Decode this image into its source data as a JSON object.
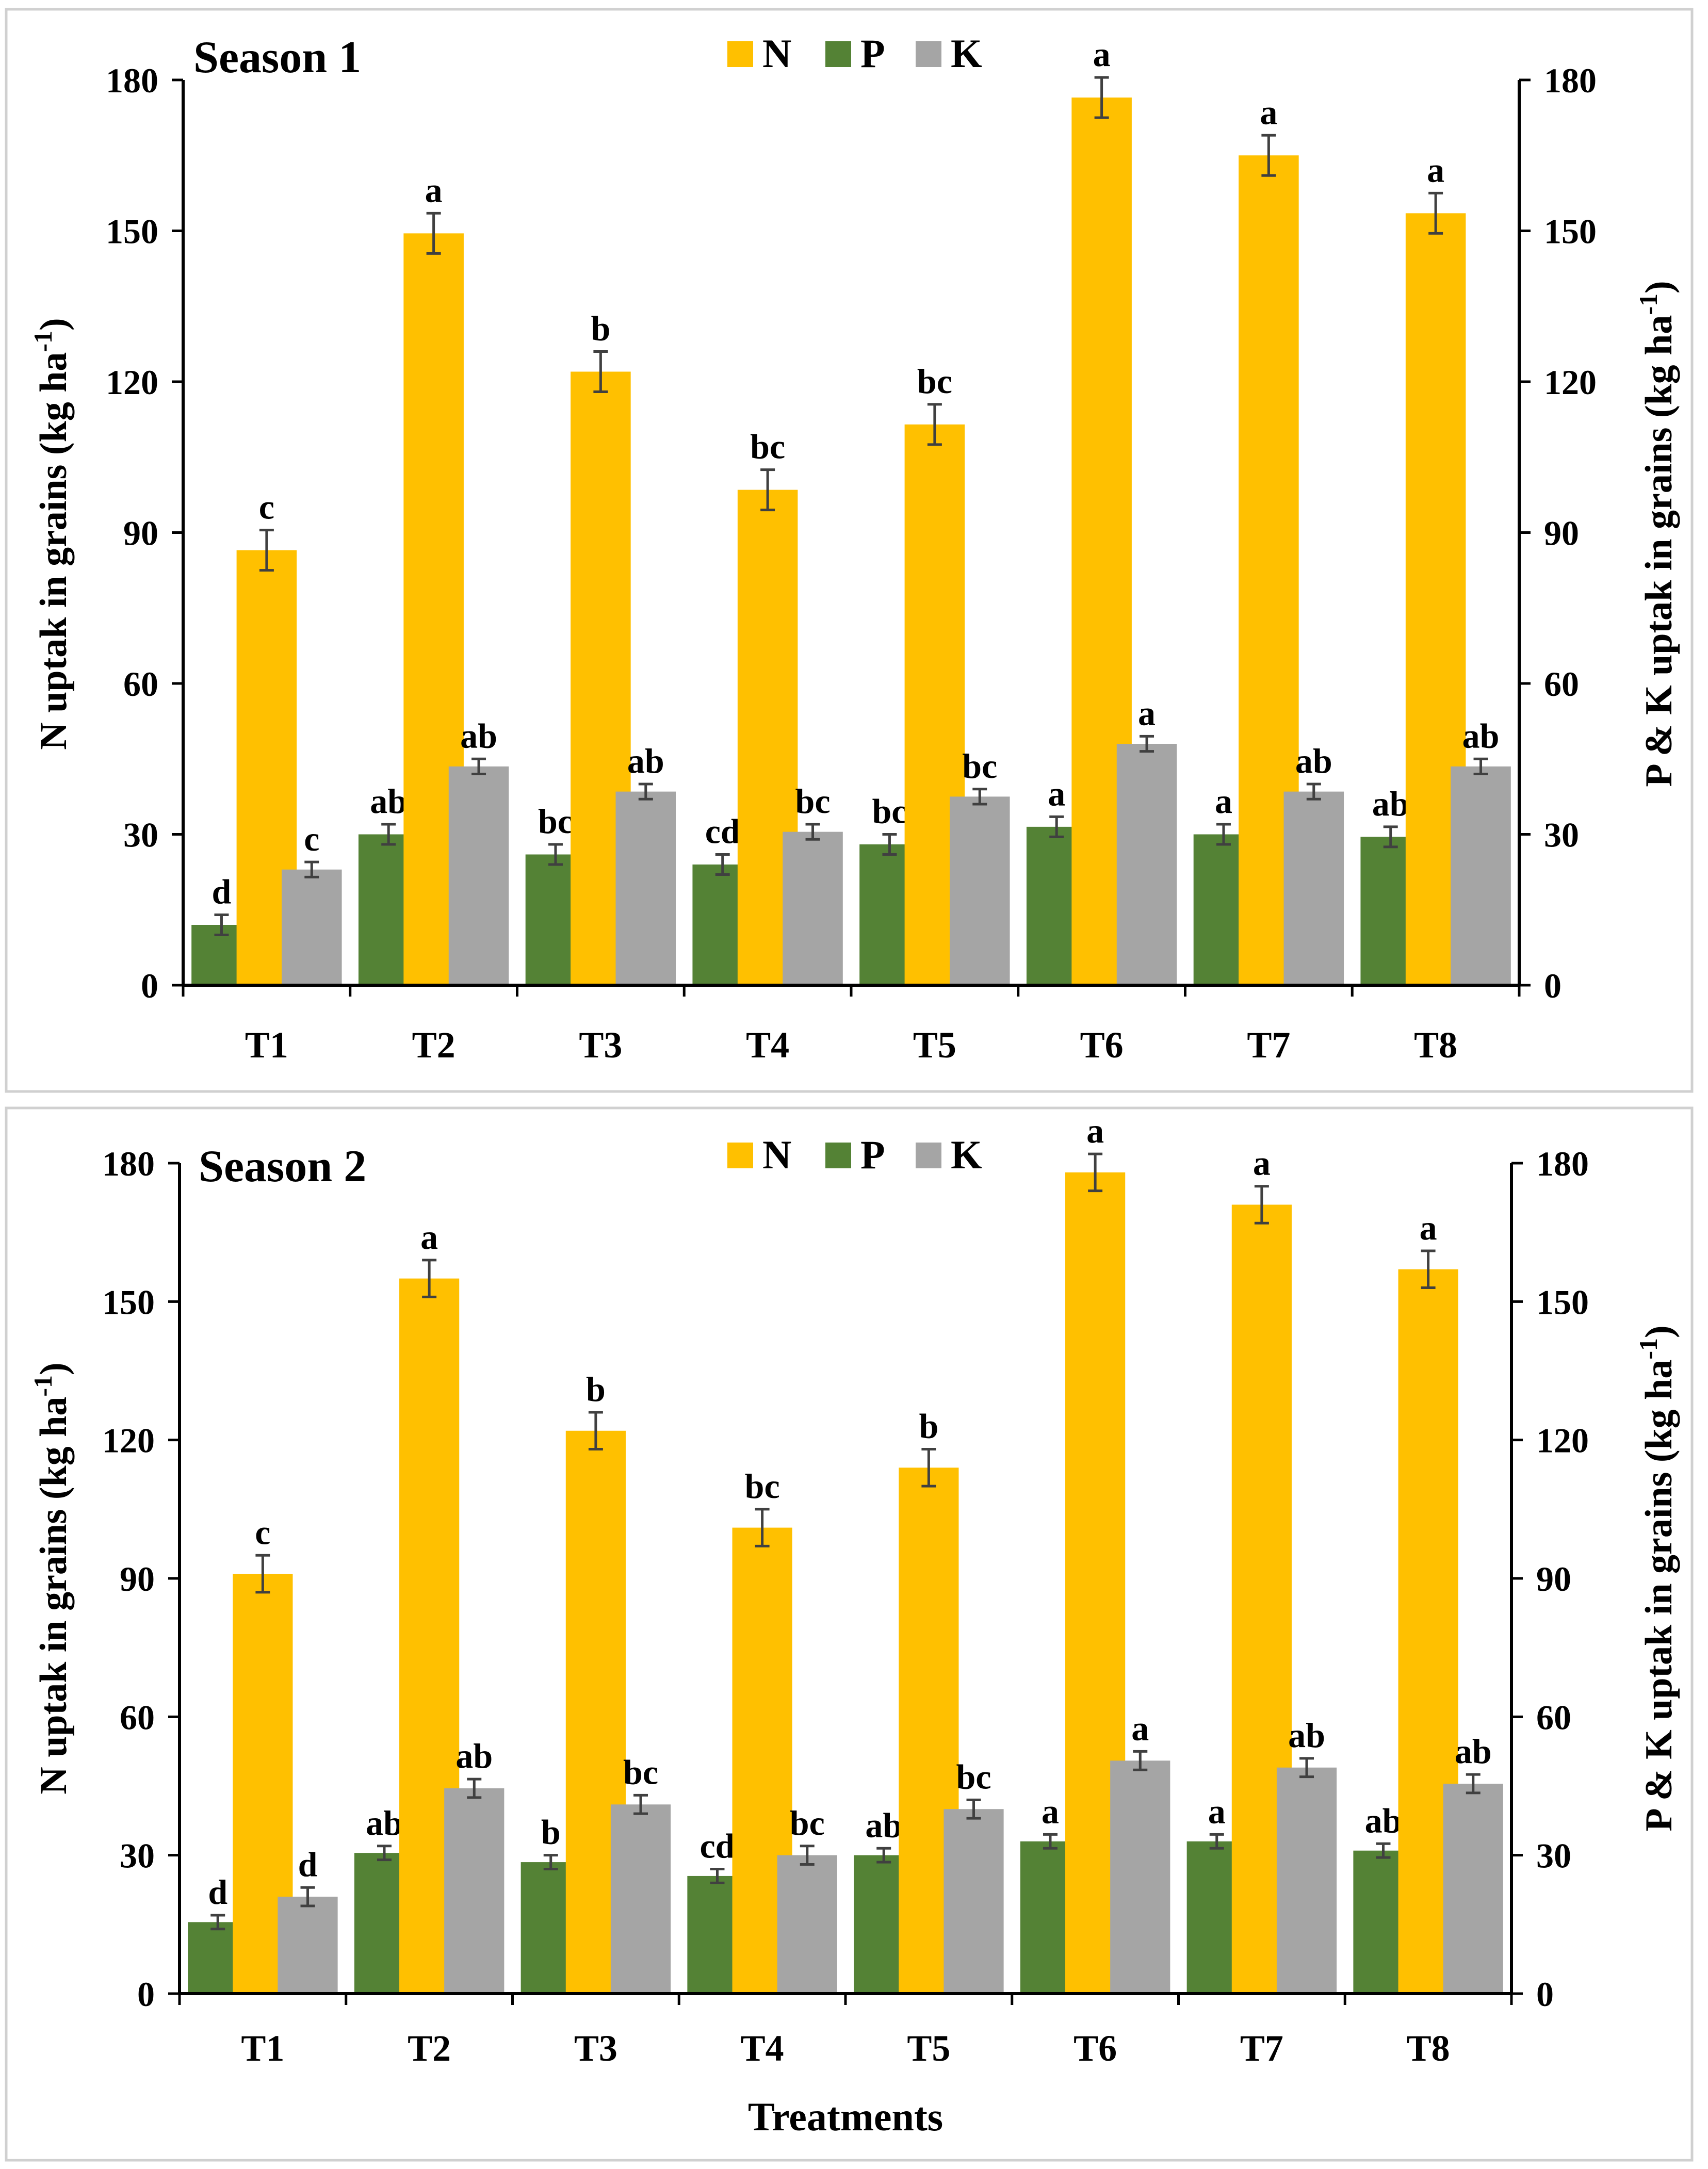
{
  "figure": {
    "xaxis_common_label": "Treatments"
  },
  "colors": {
    "N": "#FFC000",
    "P": "#548235",
    "K": "#A5A5A5",
    "error_bar": "#404040",
    "axis": "#000000"
  },
  "chart_data": [
    {
      "type": "bar",
      "title": "Season 1",
      "categories": [
        "T1",
        "T2",
        "T3",
        "T4",
        "T5",
        "T6",
        "T7",
        "T8"
      ],
      "ylabel_left": "N uptak in grains (kg ha⁻¹)",
      "ylabel_left_main": "N uptak in grains (kg ha",
      "ylabel_right": "P & K uptak in grains  (kg ha⁻¹)",
      "ylabel_right_main": "P & K uptak in grains  (kg ha",
      "ylabel_exponent": "-1",
      "ylabel_close": ")",
      "xlabel": "",
      "ylim": [
        0,
        180
      ],
      "yticks": [
        0,
        30,
        60,
        90,
        120,
        150,
        180
      ],
      "legend": [
        "N",
        "P",
        "K"
      ],
      "legend_position": "top-center",
      "series": [
        {
          "name": "N",
          "axis": "left",
          "values": [
            86.5,
            149.5,
            122.0,
            98.5,
            111.5,
            176.5,
            165.0,
            153.5
          ],
          "errors": [
            4,
            4,
            4,
            4,
            4,
            4,
            4,
            4
          ],
          "labels": [
            "c",
            "a",
            "b",
            "bc",
            "bc",
            "a",
            "a",
            "a"
          ]
        },
        {
          "name": "P",
          "axis": "right",
          "values": [
            12.0,
            30.0,
            26.0,
            24.0,
            28.0,
            31.5,
            30.0,
            29.5
          ],
          "errors": [
            2,
            2,
            2,
            2,
            2,
            2,
            2,
            2
          ],
          "labels": [
            "d",
            "ab",
            "bc",
            "cd",
            "bc",
            "a",
            "a",
            "ab"
          ]
        },
        {
          "name": "K",
          "axis": "right",
          "values": [
            23.0,
            43.5,
            38.5,
            30.5,
            37.5,
            48.0,
            38.5,
            43.5
          ],
          "errors": [
            1.5,
            1.5,
            1.5,
            1.5,
            1.5,
            1.5,
            1.5,
            1.5
          ],
          "labels": [
            "c",
            "ab",
            "ab",
            "bc",
            "bc",
            "a",
            "ab",
            "ab"
          ]
        }
      ]
    },
    {
      "type": "bar",
      "title": "Season 2",
      "categories": [
        "T1",
        "T2",
        "T3",
        "T4",
        "T5",
        "T6",
        "T7",
        "T8"
      ],
      "ylabel_left": "N uptak in grains (kg ha⁻¹)",
      "ylabel_left_main": "N uptak in grains (kg ha",
      "ylabel_right": "P & K uptak in grains  (kg ha⁻¹)",
      "ylabel_right_main": "P & K uptak in grains  (kg ha",
      "ylabel_exponent": "-1",
      "ylabel_close": ")",
      "xlabel": "Treatments",
      "ylim": [
        0,
        180
      ],
      "yticks": [
        0,
        30,
        60,
        90,
        120,
        150,
        180
      ],
      "legend": [
        "N",
        "P",
        "K"
      ],
      "legend_position": "top-center",
      "series": [
        {
          "name": "N",
          "axis": "left",
          "values": [
            91.0,
            155.0,
            122.0,
            101.0,
            114.0,
            178.0,
            171.0,
            157.0
          ],
          "errors": [
            4,
            4,
            4,
            4,
            4,
            4,
            4,
            4
          ],
          "labels": [
            "c",
            "a",
            "b",
            "bc",
            "b",
            "a",
            "a",
            "a"
          ]
        },
        {
          "name": "P",
          "axis": "right",
          "values": [
            15.5,
            30.5,
            28.5,
            25.5,
            30.0,
            33.0,
            33.0,
            31.0
          ],
          "errors": [
            1.5,
            1.5,
            1.5,
            1.5,
            1.5,
            1.5,
            1.5,
            1.5
          ],
          "labels": [
            "d",
            "ab",
            "b",
            "cd",
            "ab",
            "a",
            "a",
            "ab"
          ]
        },
        {
          "name": "K",
          "axis": "right",
          "values": [
            21.0,
            44.5,
            41.0,
            30.0,
            40.0,
            50.5,
            49.0,
            45.5
          ],
          "errors": [
            2,
            2,
            2,
            2,
            2,
            2,
            2,
            2
          ],
          "labels": [
            "d",
            "ab",
            "bc",
            "bc",
            "bc",
            "a",
            "ab",
            "ab"
          ]
        }
      ]
    }
  ]
}
